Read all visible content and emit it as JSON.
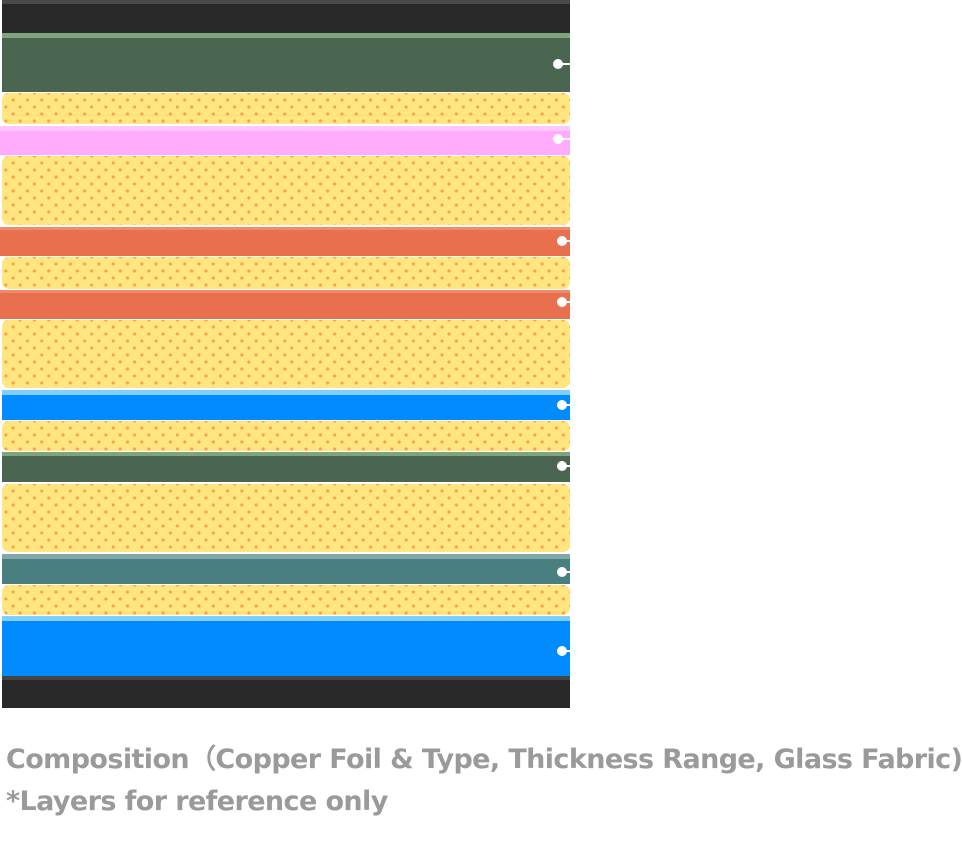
{
  "layers": [
    {
      "type": "black",
      "color": "#282828"
    },
    {
      "type": "copper",
      "color": "#4b6650",
      "marker": true
    },
    {
      "type": "prepreg",
      "color": "#ffe680"
    },
    {
      "type": "copper",
      "color": "#ffaafa",
      "marker": true
    },
    {
      "type": "prepreg",
      "color": "#ffe680"
    },
    {
      "type": "copper",
      "color": "#e8704f",
      "marker": true
    },
    {
      "type": "prepreg",
      "color": "#ffe680"
    },
    {
      "type": "copper",
      "color": "#e8704f",
      "marker": true
    },
    {
      "type": "prepreg",
      "color": "#ffe680"
    },
    {
      "type": "copper",
      "color": "#008cff",
      "marker": true
    },
    {
      "type": "prepreg",
      "color": "#ffe680"
    },
    {
      "type": "copper",
      "color": "#4b6650",
      "marker": true
    },
    {
      "type": "prepreg",
      "color": "#ffe680"
    },
    {
      "type": "copper",
      "color": "#4a7f7f",
      "marker": true
    },
    {
      "type": "prepreg",
      "color": "#ffe680"
    },
    {
      "type": "copper",
      "color": "#008cff",
      "marker": true
    },
    {
      "type": "black",
      "color": "#282828"
    }
  ],
  "caption": {
    "title": "Composition（Copper Foil & Type, Thickness Range, Glass Fabric)",
    "note": "*Layers for reference only"
  }
}
